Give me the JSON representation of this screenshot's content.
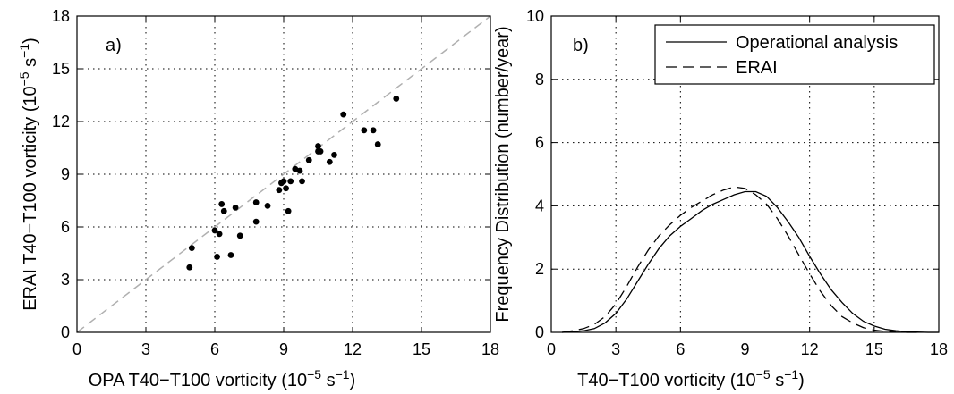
{
  "chart_data": [
    {
      "type": "scatter",
      "panel_label": "a)",
      "xlabel": "OPA T40−T100 vorticity (10",
      "xlabel_exp": "−5",
      "xlabel_mid": " s",
      "xlabel_exp2": "−1",
      "xlabel_end": ")",
      "ylabel": "ERAI T40−T100 vorticity (10",
      "ylabel_exp": "−5",
      "ylabel_mid": " s",
      "ylabel_exp2": "−1",
      "ylabel_end": ")",
      "xlim": [
        0,
        18
      ],
      "ylim": [
        0,
        18
      ],
      "xticks": [
        "0",
        "3",
        "6",
        "9",
        "12",
        "15",
        "18"
      ],
      "yticks": [
        "0",
        "3",
        "6",
        "9",
        "12",
        "15",
        "18"
      ],
      "grid": true,
      "reference_line": "1:1 dashed gray",
      "colors": {
        "points": "#000000",
        "reference": "#b0b0b0"
      },
      "points": [
        {
          "x": 4.9,
          "y": 3.7
        },
        {
          "x": 5.0,
          "y": 4.8
        },
        {
          "x": 6.0,
          "y": 5.8
        },
        {
          "x": 6.1,
          "y": 4.3
        },
        {
          "x": 6.2,
          "y": 5.6
        },
        {
          "x": 6.3,
          "y": 7.3
        },
        {
          "x": 6.4,
          "y": 6.9
        },
        {
          "x": 6.7,
          "y": 4.4
        },
        {
          "x": 6.9,
          "y": 7.1
        },
        {
          "x": 7.1,
          "y": 5.5
        },
        {
          "x": 7.8,
          "y": 6.3
        },
        {
          "x": 7.8,
          "y": 7.4
        },
        {
          "x": 8.3,
          "y": 7.2
        },
        {
          "x": 8.8,
          "y": 8.1
        },
        {
          "x": 8.9,
          "y": 8.5
        },
        {
          "x": 9.0,
          "y": 8.6
        },
        {
          "x": 9.1,
          "y": 8.2
        },
        {
          "x": 9.2,
          "y": 6.9
        },
        {
          "x": 9.3,
          "y": 8.6
        },
        {
          "x": 9.5,
          "y": 9.3
        },
        {
          "x": 9.7,
          "y": 9.2
        },
        {
          "x": 9.8,
          "y": 8.6
        },
        {
          "x": 10.1,
          "y": 9.8
        },
        {
          "x": 10.5,
          "y": 10.3
        },
        {
          "x": 10.5,
          "y": 10.6
        },
        {
          "x": 10.6,
          "y": 10.3
        },
        {
          "x": 11.0,
          "y": 9.7
        },
        {
          "x": 11.2,
          "y": 10.1
        },
        {
          "x": 11.6,
          "y": 12.4
        },
        {
          "x": 12.5,
          "y": 11.5
        },
        {
          "x": 12.9,
          "y": 11.5
        },
        {
          "x": 13.1,
          "y": 10.7
        },
        {
          "x": 13.9,
          "y": 13.3
        }
      ]
    },
    {
      "type": "line",
      "panel_label": "b)",
      "xlabel": "T40−T100 vorticity (10",
      "xlabel_exp": "−5",
      "xlabel_mid": " s",
      "xlabel_exp2": "−1",
      "xlabel_end": ")",
      "ylabel": "Frequency Distribution (number/year)",
      "xlim": [
        0,
        18
      ],
      "ylim": [
        0,
        10
      ],
      "xticks": [
        "0",
        "3",
        "6",
        "9",
        "12",
        "15",
        "18"
      ],
      "yticks": [
        "0",
        "2",
        "4",
        "6",
        "8",
        "10"
      ],
      "grid": true,
      "legend_position": "top-right",
      "series": [
        {
          "name": "Operational analysis",
          "style": "solid",
          "x": [
            0.5,
            1,
            1.5,
            2,
            2.5,
            3,
            3.5,
            4,
            4.5,
            5,
            5.5,
            6,
            6.5,
            7,
            7.5,
            8,
            8.5,
            9,
            9.5,
            10,
            10.5,
            11,
            11.5,
            12,
            12.5,
            13,
            13.5,
            14,
            14.5,
            15,
            15.5,
            16,
            16.5,
            17,
            17.5,
            18
          ],
          "values": [
            0.0,
            0.02,
            0.05,
            0.12,
            0.3,
            0.6,
            1.05,
            1.6,
            2.15,
            2.65,
            3.05,
            3.35,
            3.6,
            3.85,
            4.05,
            4.2,
            4.35,
            4.45,
            4.45,
            4.3,
            3.95,
            3.5,
            3.0,
            2.4,
            1.85,
            1.35,
            0.95,
            0.6,
            0.35,
            0.2,
            0.1,
            0.05,
            0.02,
            0.01,
            0.0,
            0.0
          ]
        },
        {
          "name": "ERAI",
          "style": "dashed",
          "x": [
            0.5,
            1,
            1.5,
            2,
            2.5,
            3,
            3.5,
            4,
            4.5,
            5,
            5.5,
            6,
            6.5,
            7,
            7.5,
            8,
            8.5,
            9,
            9.5,
            10,
            10.5,
            11,
            11.5,
            12,
            12.5,
            13,
            13.5,
            14,
            14.5,
            15,
            15.5,
            16,
            16.5,
            17
          ],
          "values": [
            0.0,
            0.05,
            0.12,
            0.25,
            0.5,
            0.9,
            1.45,
            2.05,
            2.6,
            3.05,
            3.4,
            3.7,
            3.95,
            4.15,
            4.35,
            4.5,
            4.6,
            4.55,
            4.35,
            4.05,
            3.6,
            3.05,
            2.45,
            1.85,
            1.3,
            0.85,
            0.5,
            0.3,
            0.15,
            0.07,
            0.03,
            0.01,
            0.0,
            0.0
          ]
        }
      ]
    }
  ]
}
